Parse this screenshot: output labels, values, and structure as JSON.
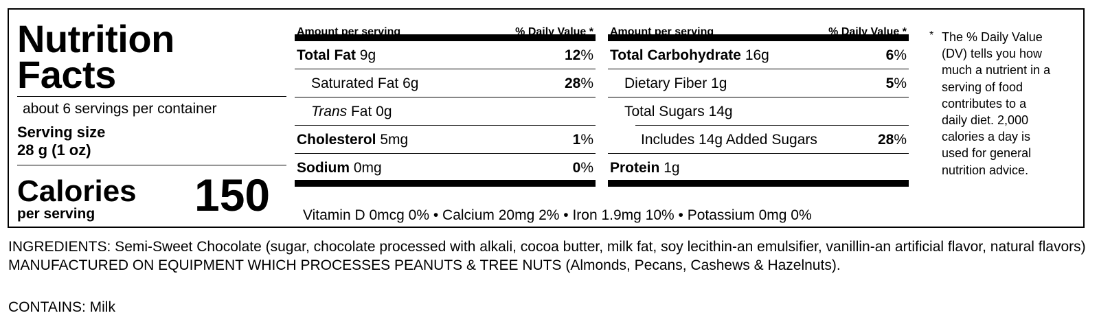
{
  "left": {
    "title_line1": "Nutrition",
    "title_line2": "Facts",
    "servings_per_container": "about 6 servings per container",
    "serving_size_label": "Serving size",
    "serving_size_value": "28 g (1 oz)",
    "calories_label": "Calories",
    "per_serving": "per serving",
    "calories_value": "150"
  },
  "header": {
    "amount_per_serving": "Amount per serving",
    "daily_value": "% Daily Value *"
  },
  "column1": [
    {
      "name": "Total Fat",
      "amount": "9g",
      "dv_num": "12",
      "dv_sym": "%"
    },
    {
      "name": "Saturated Fat",
      "amount": "6g",
      "dv_num": "28",
      "dv_sym": "%"
    },
    {
      "name": "Trans",
      "name_rest": "Fat",
      "amount": "0g"
    },
    {
      "name": "Cholesterol",
      "amount": "5mg",
      "dv_num": "1",
      "dv_sym": "%"
    },
    {
      "name": "Sodium",
      "amount": "0mg",
      "dv_num": "0",
      "dv_sym": "%"
    }
  ],
  "column2": [
    {
      "name": "Total Carbohydrate",
      "amount": "16g",
      "dv_num": "6",
      "dv_sym": "%"
    },
    {
      "name": "Dietary Fiber",
      "amount": "1g",
      "dv_num": "5",
      "dv_sym": "%"
    },
    {
      "name": "Total Sugars",
      "amount": "14g"
    },
    {
      "name": "Includes 14g Added Sugars",
      "dv_num": "28",
      "dv_sym": "%"
    },
    {
      "name": "Protein",
      "amount": "1g"
    }
  ],
  "vitamins": "Vitamin D 0mcg 0%  •  Calcium 20mg 2%  •  Iron 1.9mg 10%  •  Potassium 0mg 0%",
  "footnote": {
    "star": "*",
    "text": "The % Daily Value (DV) tells you how much a nutrient in a serving of food contributes to a daily diet. 2,000 calories a day is used for general nutrition advice."
  },
  "ingredients": "INGREDIENTS: Semi-Sweet Chocolate (sugar, chocolate processed with alkali, cocoa butter, milk fat, soy lecithin-an emulsifier, vanillin-an artificial flavor, natural flavors)      MANUFACTURED ON EQUIPMENT WHICH PROCESSES PEANUTS & TREE NUTS (Almonds, Pecans, Cashews & Hazelnuts).",
  "contains": "CONTAINS: Milk"
}
